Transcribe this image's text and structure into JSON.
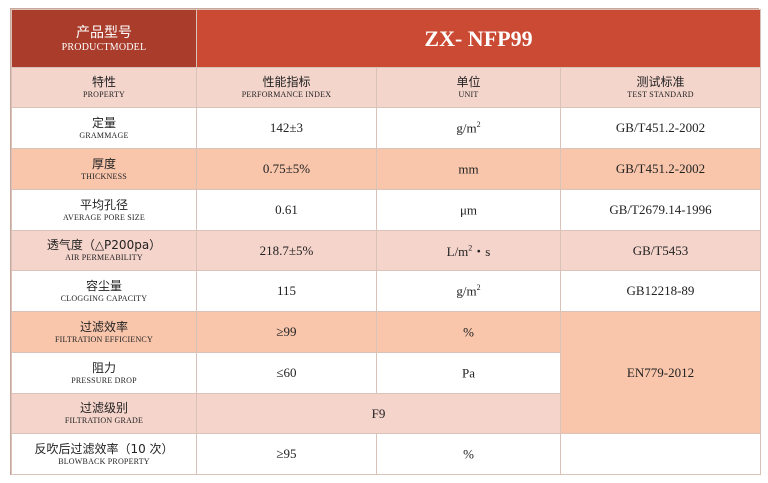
{
  "header": {
    "model_label_zh": "产品型号",
    "model_label_en": "PRODUCTMODEL",
    "model_value": "ZX- NFP99"
  },
  "columns": [
    {
      "zh": "特性",
      "en": "PROPERTY"
    },
    {
      "zh": "性能指标",
      "en": "PERFORMANCE INDEX"
    },
    {
      "zh": "单位",
      "en": "UNIT"
    },
    {
      "zh": "测试标准",
      "en": "TEST STANDARD"
    }
  ],
  "rows": [
    {
      "zh": "定量",
      "en": "GRAMMAGE",
      "value": "142±3",
      "unit_base": "g/m",
      "unit_sup": "2",
      "unit_tail": "",
      "standard": "GB/T451.2-2002"
    },
    {
      "zh": "厚度",
      "en": "THICKNESS",
      "value": "0.75±5%",
      "unit_base": "mm",
      "unit_sup": "",
      "unit_tail": "",
      "standard": "GB/T451.2-2002"
    },
    {
      "zh": "平均孔径",
      "en": "AVERAGE PORE SIZE",
      "value": "0.61",
      "unit_base": "μm",
      "unit_sup": "",
      "unit_tail": "",
      "standard": "GB/T2679.14-1996"
    },
    {
      "zh": "透气度（△P200pa）",
      "en": "AIR PERMEABILITY",
      "value": "218.7±5%",
      "unit_base": "L/m",
      "unit_sup": "2",
      "unit_tail": "・s",
      "standard": "GB/T5453"
    },
    {
      "zh": "容尘量",
      "en": "CLOGGING CAPACITY",
      "value": "115",
      "unit_base": "g/m",
      "unit_sup": "2",
      "unit_tail": "",
      "standard": "GB12218-89"
    },
    {
      "zh": "过滤效率",
      "en": "FILTRATION EFFICIENCY",
      "value": "≥99",
      "unit_base": "%",
      "unit_sup": "",
      "unit_tail": ""
    },
    {
      "zh": "阻力",
      "en": "PRESSURE DROP",
      "value": "≤60",
      "unit_base": "Pa",
      "unit_sup": "",
      "unit_tail": ""
    },
    {
      "zh": "过滤级别",
      "en": "FILTRATION GRADE",
      "value": "F9"
    },
    {
      "zh": "反吹后过滤效率（10 次）",
      "en": "BLOWBACK PROPERTY",
      "value": "≥95",
      "unit_base": "%",
      "unit_sup": "",
      "unit_tail": ""
    }
  ],
  "merged_standard": "EN779-2012"
}
